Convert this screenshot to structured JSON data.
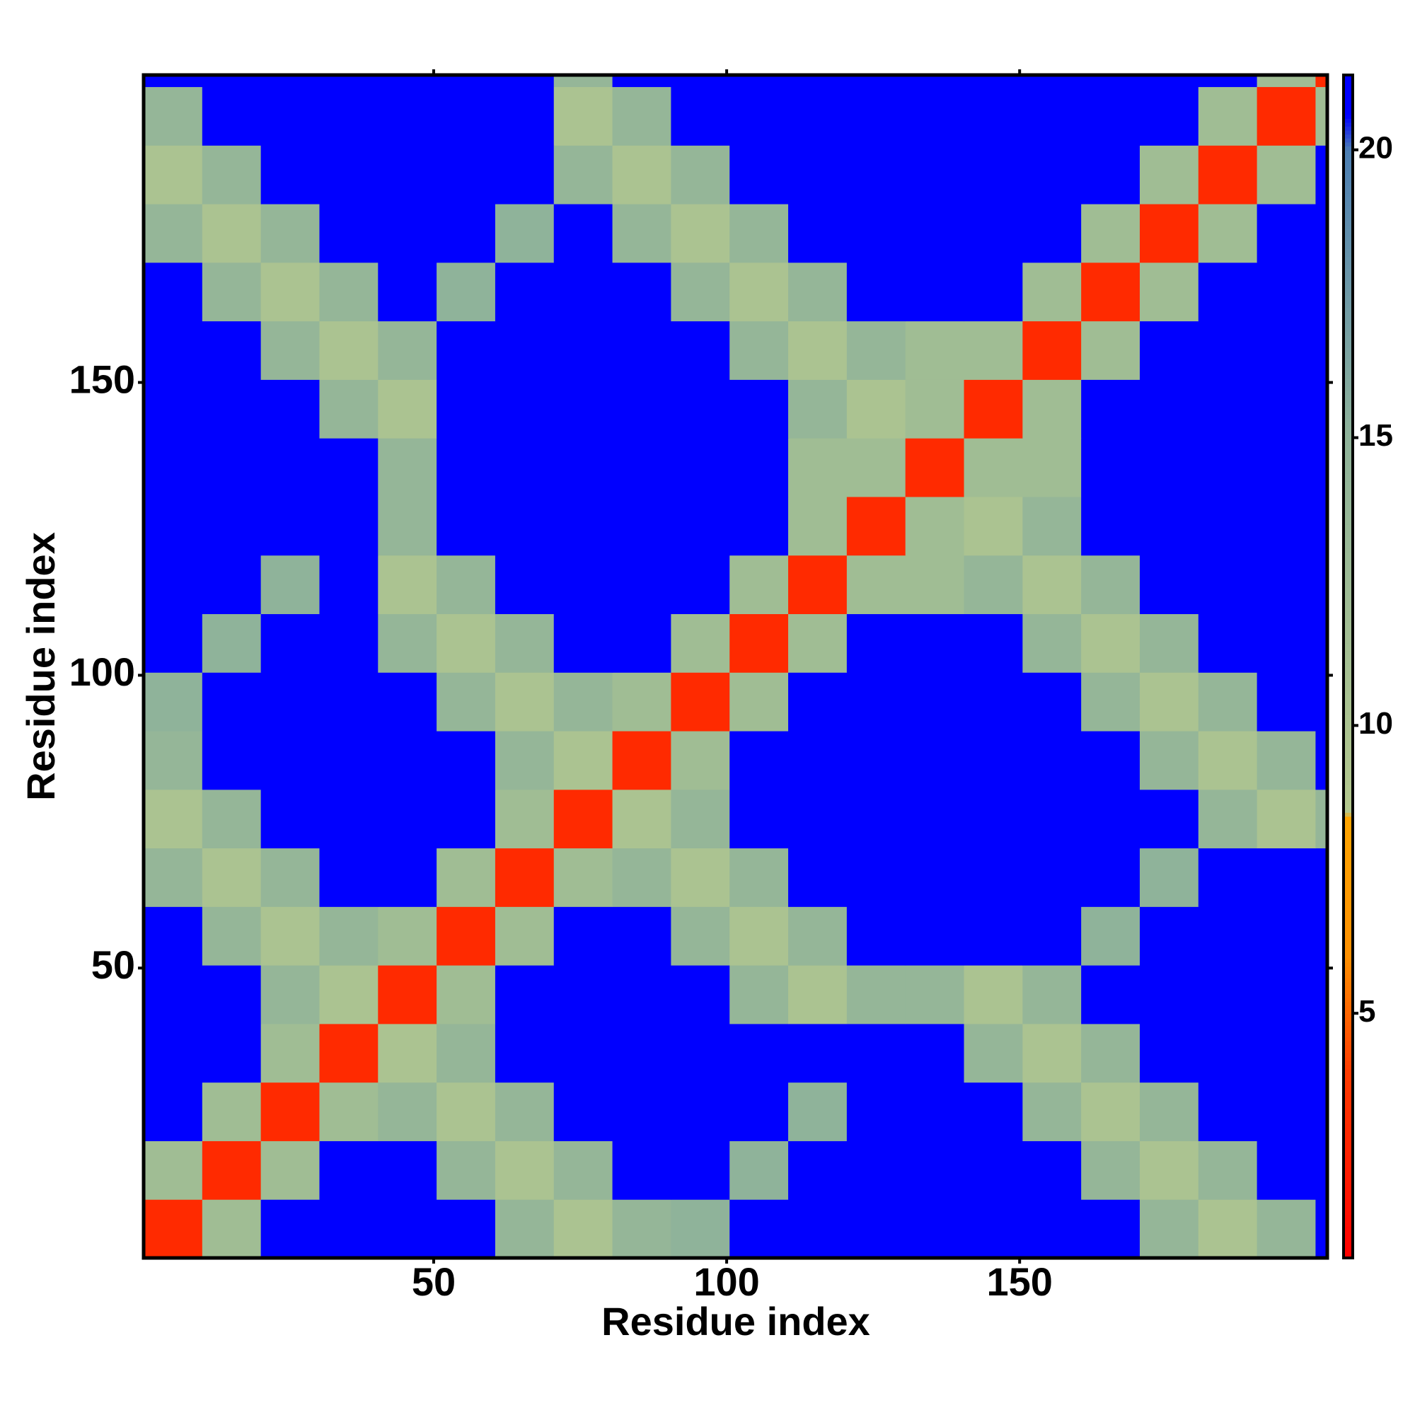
{
  "chart_data": {
    "type": "heatmap",
    "xlabel": "Residue index",
    "ylabel": "Residue index",
    "xbins": [
      0.5,
      10.5,
      20.5,
      30.5,
      40.5,
      50.5,
      60.5,
      70.5,
      80.5,
      90.5,
      100.5,
      110.5,
      120.5,
      130.5,
      140.5,
      150.5,
      160.5,
      170.5,
      180.5,
      190.5,
      200.5,
      202.5
    ],
    "ybins": [
      0.5,
      10.5,
      20.5,
      30.5,
      40.5,
      50.5,
      60.5,
      70.5,
      80.5,
      90.5,
      100.5,
      110.5,
      120.5,
      130.5,
      140.5,
      150.5,
      160.5,
      170.5,
      180.5,
      190.5,
      200.5,
      202.5
    ],
    "xlim": [
      0.5,
      202.5
    ],
    "ylim": [
      0.5,
      202.5
    ],
    "xticks": [
      50,
      100,
      150
    ],
    "yticks": [
      50,
      100,
      150
    ],
    "clim": [
      0.75,
      21.3
    ],
    "cticks": [
      5,
      10,
      15,
      20
    ],
    "colorscale": [
      [
        0.75,
        "#ff0000"
      ],
      [
        4,
        "#ff3c00"
      ],
      [
        6,
        "#ff9000"
      ],
      [
        8.4,
        "#ffa500"
      ],
      [
        8.5,
        "#b4c88e"
      ],
      [
        15,
        "#8fb39a"
      ],
      [
        20,
        "#4d7fb3"
      ],
      [
        20.6,
        "#0000ff"
      ],
      [
        21.3,
        "#0000ff"
      ]
    ],
    "z": [
      [
        3,
        12,
        21,
        21,
        21,
        21,
        14,
        10,
        14,
        15,
        21,
        21,
        21,
        21,
        21,
        21,
        21,
        14,
        10,
        14,
        21
      ],
      [
        12,
        3,
        12,
        21,
        21,
        14,
        10,
        14,
        21,
        21,
        15,
        21,
        21,
        21,
        21,
        21,
        14,
        10,
        14,
        21,
        21
      ],
      [
        21,
        12,
        3,
        12,
        14,
        10,
        14,
        21,
        21,
        21,
        21,
        15,
        21,
        21,
        21,
        14,
        10,
        14,
        21,
        21,
        21
      ],
      [
        21,
        21,
        12,
        3,
        10,
        14,
        21,
        21,
        21,
        21,
        21,
        21,
        21,
        21,
        14,
        10,
        14,
        21,
        21,
        21,
        21
      ],
      [
        21,
        21,
        14,
        10,
        3,
        12,
        21,
        21,
        21,
        21,
        14,
        10,
        14,
        14,
        10,
        14,
        21,
        21,
        21,
        21,
        21
      ],
      [
        21,
        14,
        10,
        14,
        12,
        3,
        12,
        21,
        21,
        14,
        10,
        14,
        21,
        21,
        21,
        21,
        15,
        21,
        21,
        21,
        21
      ],
      [
        14,
        10,
        14,
        21,
        21,
        12,
        3,
        12,
        14,
        10,
        14,
        21,
        21,
        21,
        21,
        21,
        21,
        15,
        21,
        21,
        21
      ],
      [
        10,
        14,
        21,
        21,
        21,
        21,
        12,
        3,
        10,
        14,
        21,
        21,
        21,
        21,
        21,
        21,
        21,
        21,
        14,
        10,
        14
      ],
      [
        14,
        21,
        21,
        21,
        21,
        21,
        14,
        10,
        3,
        12,
        21,
        21,
        21,
        21,
        21,
        21,
        21,
        14,
        10,
        14,
        21
      ],
      [
        15,
        21,
        21,
        21,
        21,
        14,
        10,
        14,
        12,
        3,
        12,
        21,
        21,
        21,
        21,
        21,
        14,
        10,
        14,
        21,
        21
      ],
      [
        21,
        15,
        21,
        21,
        14,
        10,
        14,
        21,
        21,
        12,
        3,
        12,
        21,
        21,
        21,
        14,
        10,
        14,
        21,
        21,
        21
      ],
      [
        21,
        21,
        15,
        21,
        10,
        14,
        21,
        21,
        21,
        21,
        12,
        3,
        12,
        12,
        14,
        10,
        14,
        21,
        21,
        21,
        21
      ],
      [
        21,
        21,
        21,
        21,
        14,
        21,
        21,
        21,
        21,
        21,
        21,
        12,
        3,
        12,
        10,
        14,
        21,
        21,
        21,
        21,
        21
      ],
      [
        21,
        21,
        21,
        21,
        14,
        21,
        21,
        21,
        21,
        21,
        21,
        12,
        12,
        3,
        12,
        12,
        21,
        21,
        21,
        21,
        21
      ],
      [
        21,
        21,
        21,
        14,
        10,
        21,
        21,
        21,
        21,
        21,
        21,
        14,
        10,
        12,
        3,
        12,
        21,
        21,
        21,
        21,
        21
      ],
      [
        21,
        21,
        14,
        10,
        14,
        21,
        21,
        21,
        21,
        21,
        14,
        10,
        14,
        12,
        12,
        3,
        12,
        21,
        21,
        21,
        21
      ],
      [
        21,
        14,
        10,
        14,
        21,
        15,
        21,
        21,
        21,
        14,
        10,
        14,
        21,
        21,
        21,
        12,
        3,
        12,
        21,
        21,
        21
      ],
      [
        14,
        10,
        14,
        21,
        21,
        21,
        15,
        21,
        14,
        10,
        14,
        21,
        21,
        21,
        21,
        21,
        12,
        3,
        12,
        21,
        21
      ],
      [
        10,
        14,
        21,
        21,
        21,
        21,
        21,
        14,
        10,
        14,
        21,
        21,
        21,
        21,
        21,
        21,
        21,
        12,
        3,
        12,
        21
      ],
      [
        14,
        21,
        21,
        21,
        21,
        21,
        21,
        10,
        14,
        21,
        21,
        21,
        21,
        21,
        21,
        21,
        21,
        21,
        12,
        3,
        12
      ],
      [
        21,
        21,
        21,
        21,
        21,
        21,
        21,
        14,
        21,
        21,
        21,
        21,
        21,
        21,
        21,
        21,
        21,
        21,
        21,
        12,
        3
      ]
    ]
  }
}
